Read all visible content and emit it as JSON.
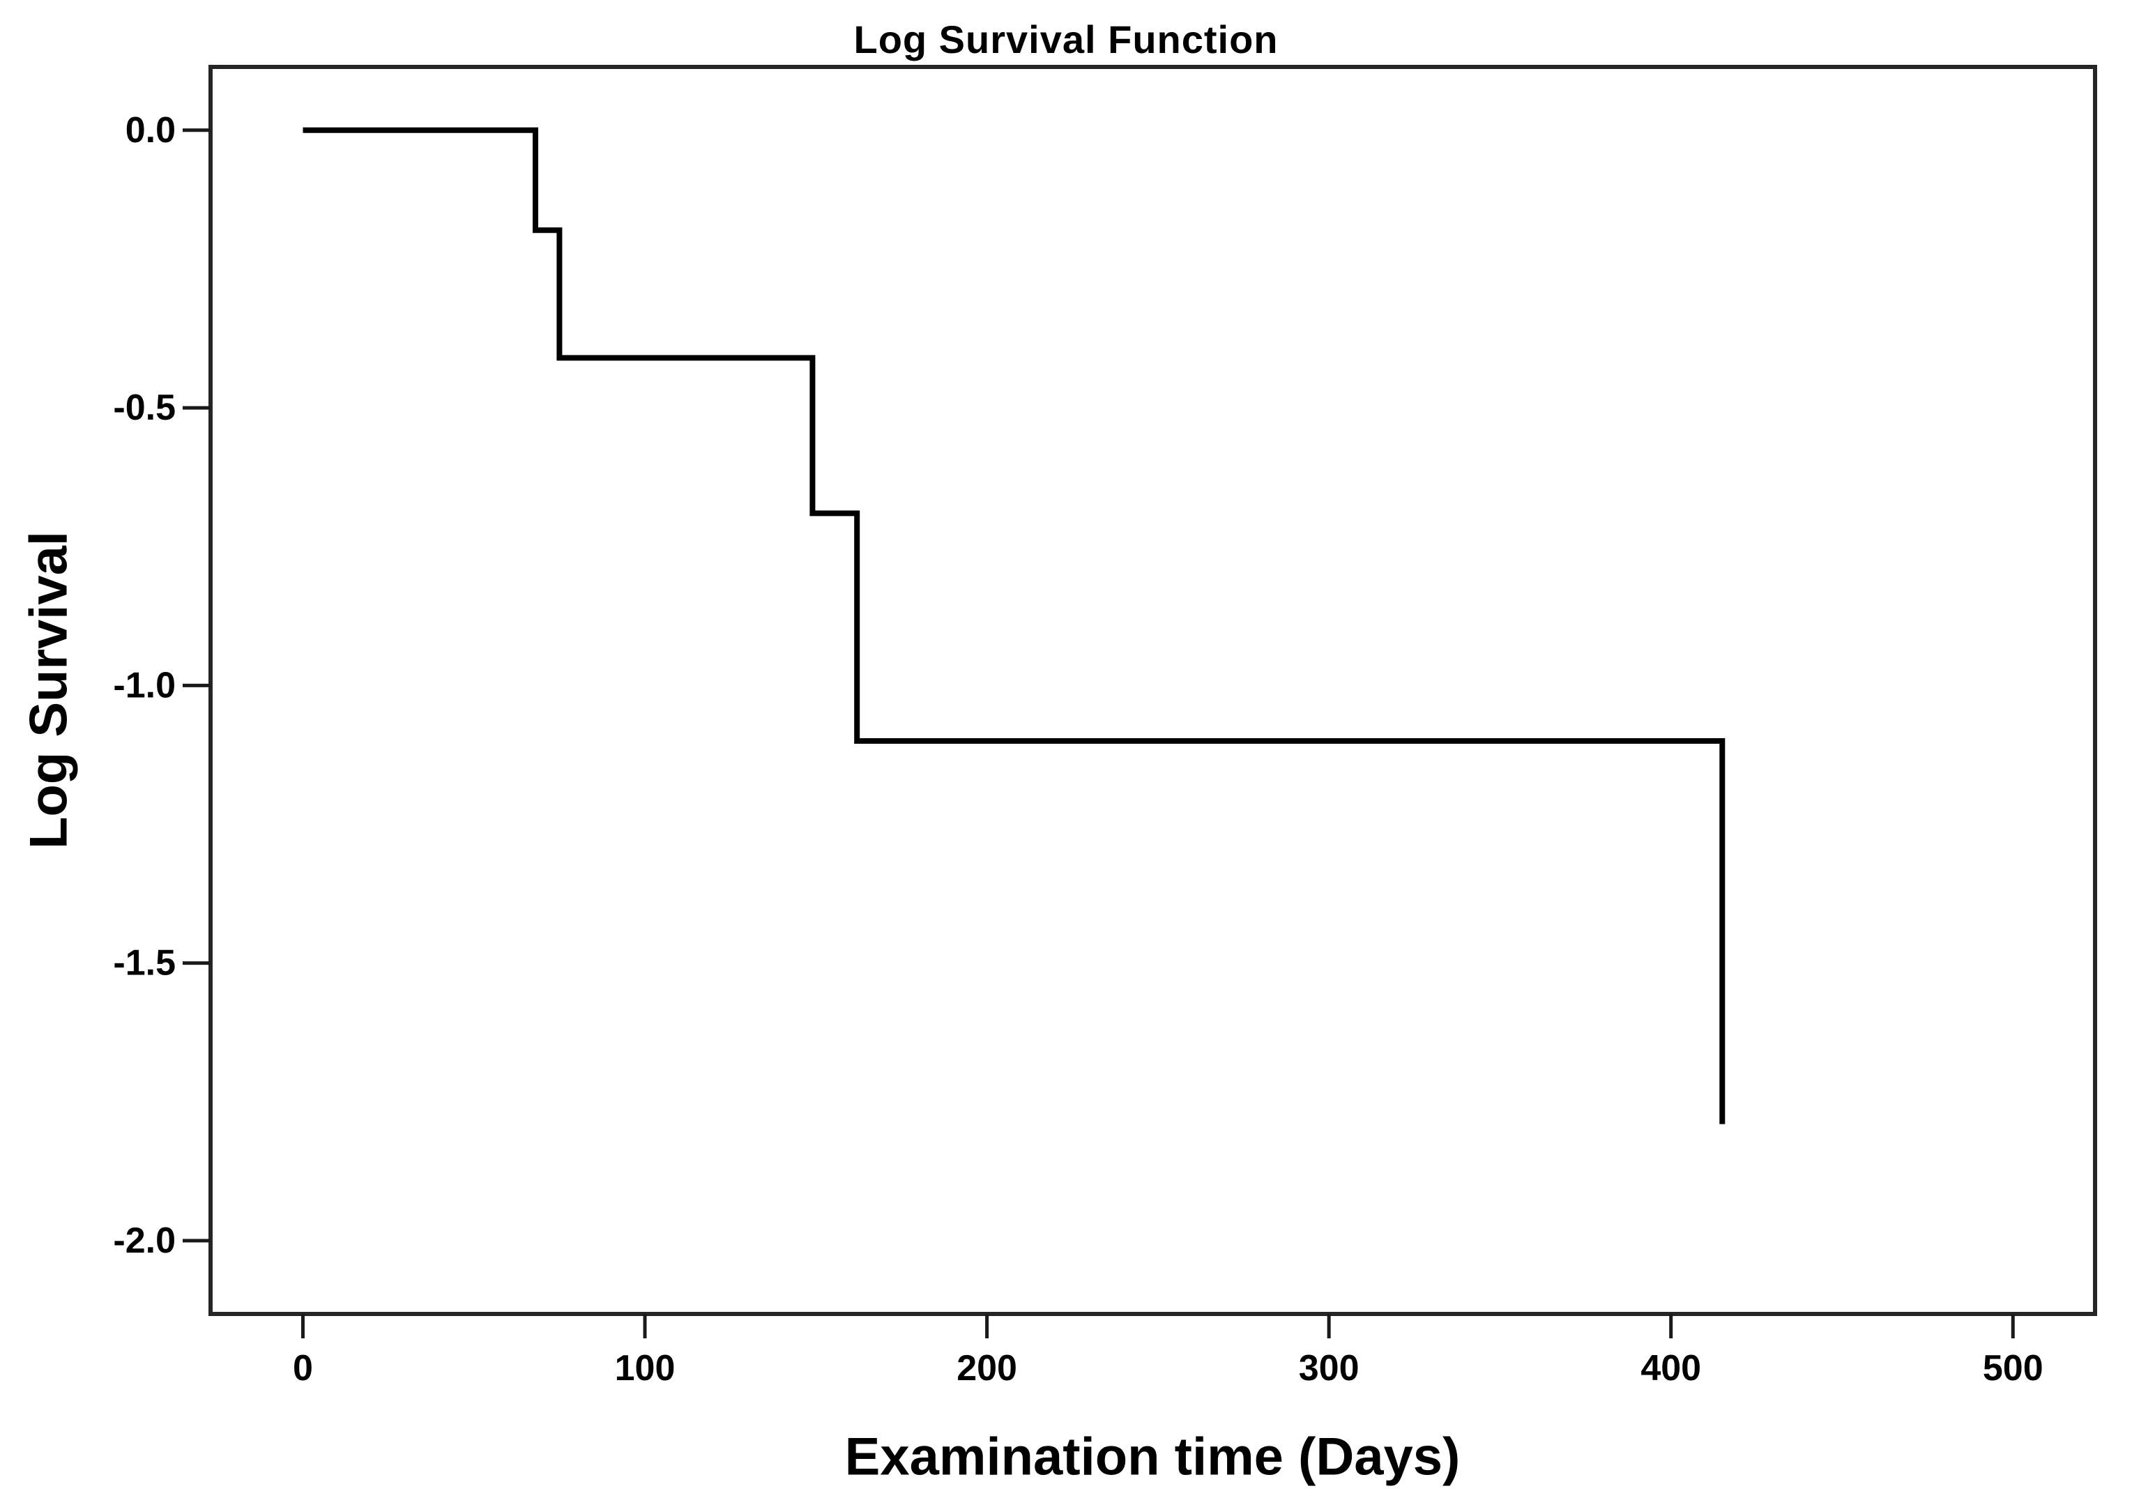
{
  "chart_data": {
    "type": "line",
    "subtype": "step",
    "title": "Log Survival Function",
    "xlabel": "Examination time (Days)",
    "ylabel": "Log Survival",
    "x_ticks": [
      0,
      100,
      200,
      300,
      400,
      500
    ],
    "x_tick_labels": [
      "0",
      "100",
      "200",
      "300",
      "400",
      "500"
    ],
    "y_ticks": [
      0.0,
      -0.5,
      -1.0,
      -1.5,
      -2.0
    ],
    "y_tick_labels": [
      "0.0",
      "-0.5",
      "-1.0",
      "-1.5",
      "-2.0"
    ],
    "xlim": [
      -27,
      524
    ],
    "ylim": [
      -2.132,
      0.114
    ],
    "grid": false,
    "legend": null,
    "series": [
      {
        "name": "log-survival-step-curve",
        "points": [
          [
            0,
            0.0
          ],
          [
            68,
            0.0
          ],
          [
            68,
            -0.18
          ],
          [
            75,
            -0.18
          ],
          [
            75,
            -0.41
          ],
          [
            149,
            -0.41
          ],
          [
            149,
            -0.69
          ],
          [
            162,
            -0.69
          ],
          [
            162,
            -1.1
          ],
          [
            415,
            -1.1
          ],
          [
            415,
            -1.79
          ]
        ]
      }
    ],
    "colors": {
      "line": "#000000",
      "frame": "#262626",
      "tick": "#1a1a1a",
      "text": "#000000",
      "background": "#ffffff"
    }
  }
}
